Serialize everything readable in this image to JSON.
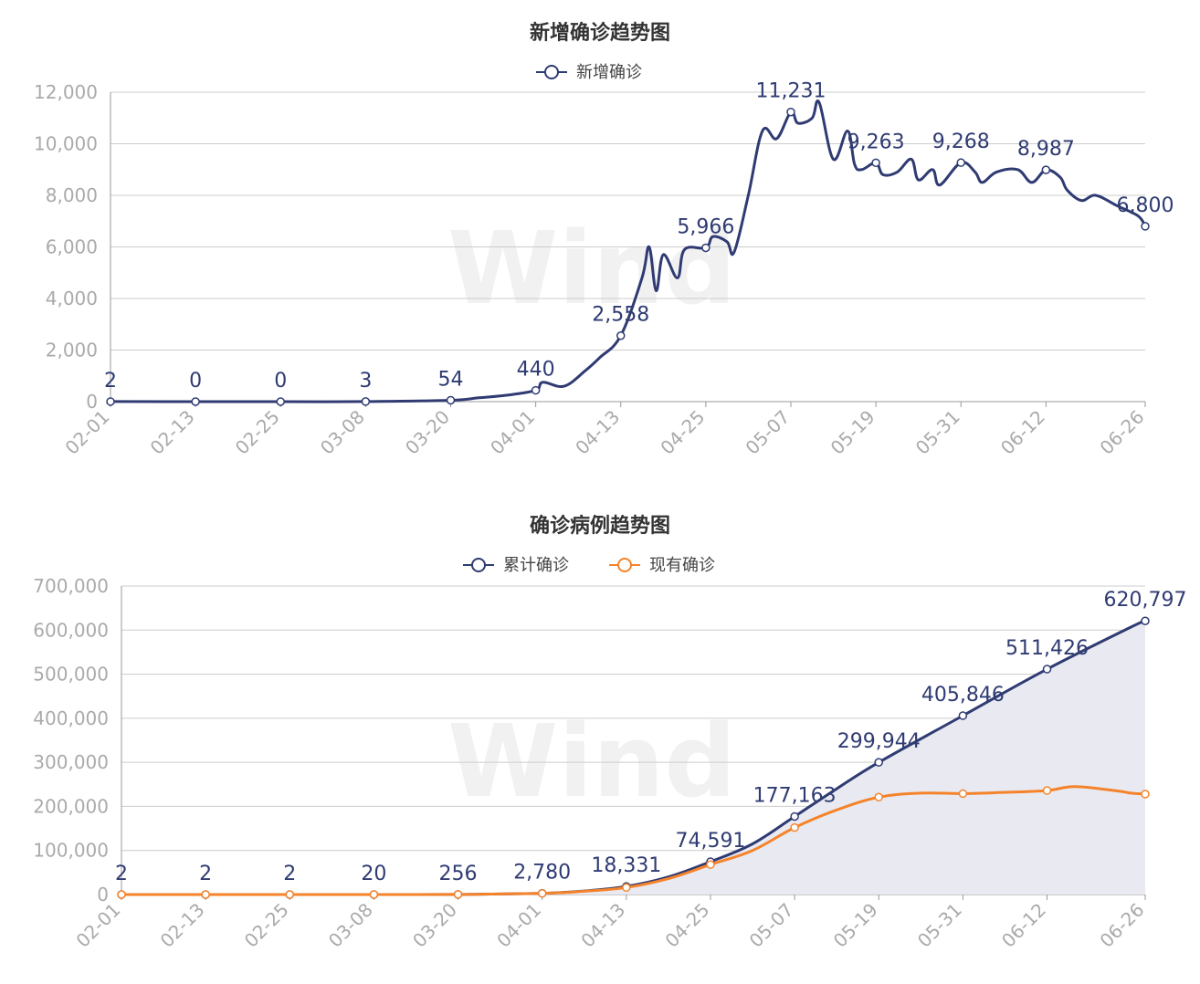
{
  "chart_data": [
    {
      "type": "line",
      "title": "新增确诊趋势图",
      "xlabel": "",
      "ylabel": "",
      "ylim": [
        0,
        12000
      ],
      "yticks": [
        "0",
        "2,000",
        "4,000",
        "6,000",
        "8,000",
        "10,000",
        "12,000"
      ],
      "xticks": [
        "02-01",
        "02-13",
        "02-25",
        "03-08",
        "03-20",
        "04-01",
        "04-13",
        "04-25",
        "05-07",
        "05-19",
        "05-31",
        "06-12",
        "06-26"
      ],
      "legend_position": "top-center",
      "grid": "horizontal",
      "series": [
        {
          "name": "新增确诊",
          "color": "#2f3b72",
          "points": [
            [
              "02-01",
              2
            ],
            [
              "02-13",
              0
            ],
            [
              "02-25",
              0
            ],
            [
              "03-08",
              3
            ],
            [
              "03-20",
              54
            ],
            [
              "03-24",
              150
            ],
            [
              "03-28",
              250
            ],
            [
              "04-01",
              440
            ],
            [
              "04-02",
              750
            ],
            [
              "04-05",
              600
            ],
            [
              "04-08",
              1200
            ],
            [
              "04-10",
              1700
            ],
            [
              "04-13",
              2558
            ],
            [
              "04-16",
              4800
            ],
            [
              "04-17",
              6000
            ],
            [
              "04-18",
              4300
            ],
            [
              "04-19",
              5700
            ],
            [
              "04-21",
              4800
            ],
            [
              "04-22",
              5900
            ],
            [
              "04-25",
              5966
            ],
            [
              "04-26",
              6400
            ],
            [
              "04-28",
              6200
            ],
            [
              "04-29",
              5800
            ],
            [
              "05-01",
              8000
            ],
            [
              "05-03",
              10500
            ],
            [
              "05-05",
              10200
            ],
            [
              "05-07",
              11231
            ],
            [
              "05-08",
              10800
            ],
            [
              "05-10",
              11000
            ],
            [
              "05-11",
              11600
            ],
            [
              "05-13",
              9400
            ],
            [
              "05-15",
              10500
            ],
            [
              "05-16",
              9200
            ],
            [
              "05-17",
              9000
            ],
            [
              "05-19",
              9263
            ],
            [
              "05-20",
              8800
            ],
            [
              "05-22",
              8900
            ],
            [
              "05-24",
              9400
            ],
            [
              "05-25",
              8600
            ],
            [
              "05-27",
              9000
            ],
            [
              "05-28",
              8400
            ],
            [
              "05-31",
              9268
            ],
            [
              "06-02",
              8900
            ],
            [
              "06-03",
              8500
            ],
            [
              "06-05",
              8900
            ],
            [
              "06-08",
              9000
            ],
            [
              "06-10",
              8500
            ],
            [
              "06-12",
              8987
            ],
            [
              "06-14",
              8700
            ],
            [
              "06-15",
              8200
            ],
            [
              "06-17",
              7800
            ],
            [
              "06-19",
              8000
            ],
            [
              "06-22",
              7600
            ],
            [
              "06-25",
              7200
            ],
            [
              "06-26",
              6800
            ]
          ],
          "labels": [
            [
              "02-01",
              "2"
            ],
            [
              "02-13",
              "0"
            ],
            [
              "02-25",
              "0"
            ],
            [
              "03-08",
              "3"
            ],
            [
              "03-20",
              "54"
            ],
            [
              "04-01",
              "440"
            ],
            [
              "04-13",
              "2,558"
            ],
            [
              "04-25",
              "5,966"
            ],
            [
              "05-07",
              "11,231"
            ],
            [
              "05-19",
              "9,263"
            ],
            [
              "05-31",
              "9,268"
            ],
            [
              "06-12",
              "8,987"
            ],
            [
              "06-26",
              "6,800"
            ]
          ]
        }
      ]
    },
    {
      "type": "line",
      "title": "确诊病例趋势图",
      "xlabel": "",
      "ylabel": "",
      "ylim": [
        0,
        700000
      ],
      "yticks": [
        "0",
        "100,000",
        "200,000",
        "300,000",
        "400,000",
        "500,000",
        "600,000",
        "700,000"
      ],
      "xticks": [
        "02-01",
        "02-13",
        "02-25",
        "03-08",
        "03-20",
        "04-01",
        "04-13",
        "04-25",
        "05-07",
        "05-19",
        "05-31",
        "06-12",
        "06-26"
      ],
      "legend_position": "top-center",
      "grid": "horizontal",
      "series": [
        {
          "name": "累计确诊",
          "color": "#2f3b72",
          "area": true,
          "points": [
            [
              "02-01",
              2
            ],
            [
              "02-13",
              2
            ],
            [
              "02-25",
              2
            ],
            [
              "03-08",
              20
            ],
            [
              "03-20",
              256
            ],
            [
              "04-01",
              2780
            ],
            [
              "04-07",
              8000
            ],
            [
              "04-13",
              18331
            ],
            [
              "04-19",
              40000
            ],
            [
              "04-25",
              74591
            ],
            [
              "05-01",
              115000
            ],
            [
              "05-07",
              177163
            ],
            [
              "05-13",
              240000
            ],
            [
              "05-19",
              299944
            ],
            [
              "05-31",
              405846
            ],
            [
              "06-12",
              511426
            ],
            [
              "06-24",
              607000
            ],
            [
              "06-26",
              620797
            ]
          ],
          "labels": [
            [
              "02-01",
              "2"
            ],
            [
              "02-13",
              "2"
            ],
            [
              "02-25",
              "2"
            ],
            [
              "03-08",
              "20"
            ],
            [
              "03-20",
              "256"
            ],
            [
              "04-01",
              "2,780"
            ],
            [
              "04-13",
              "18,331"
            ],
            [
              "04-25",
              "74,591"
            ],
            [
              "05-07",
              "177,163"
            ],
            [
              "05-19",
              "299,944"
            ],
            [
              "05-31",
              "405,846"
            ],
            [
              "06-12",
              "511,426"
            ],
            [
              "06-26",
              "620,797"
            ]
          ]
        },
        {
          "name": "现有确诊",
          "color": "#f5832a",
          "area": false,
          "points": [
            [
              "02-01",
              2
            ],
            [
              "02-13",
              2
            ],
            [
              "02-25",
              2
            ],
            [
              "03-08",
              20
            ],
            [
              "03-20",
              250
            ],
            [
              "04-01",
              2700
            ],
            [
              "04-07",
              7500
            ],
            [
              "04-13",
              16000
            ],
            [
              "04-19",
              36000
            ],
            [
              "04-25",
              68000
            ],
            [
              "05-01",
              100000
            ],
            [
              "05-07",
              152000
            ],
            [
              "05-13",
              192000
            ],
            [
              "05-19",
              221000
            ],
            [
              "05-25",
              230000
            ],
            [
              "05-31",
              229000
            ],
            [
              "06-06",
              232000
            ],
            [
              "06-12",
              236000
            ],
            [
              "06-16",
              245000
            ],
            [
              "06-22",
              235000
            ],
            [
              "06-24",
              230000
            ],
            [
              "06-26",
              228000
            ]
          ]
        }
      ]
    }
  ],
  "watermark": "Wind"
}
